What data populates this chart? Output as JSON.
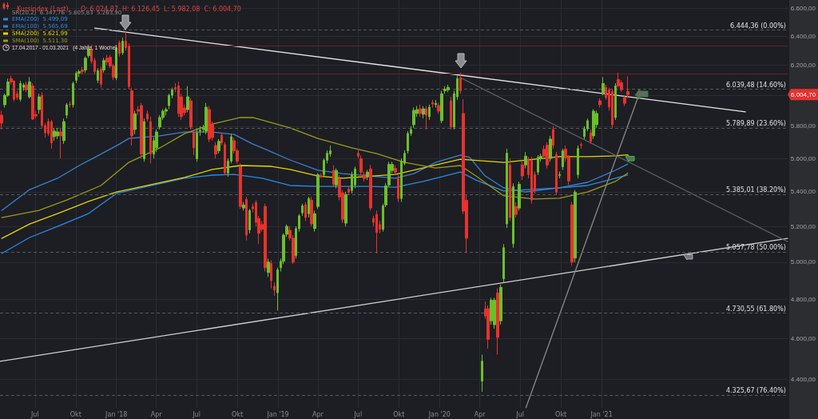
{
  "chart_data": {
    "type": "candlestick",
    "title": "Kursindex (Last)",
    "subtitle": "O: 6.024,87  H: 6.126,45  L: 5.982,08  C: 6.004,70",
    "x": [
      "2017-04-17",
      "2017-04-24",
      "2017-05-01",
      "2017-05-08",
      "2017-05-15",
      "2017-05-22",
      "2017-05-29",
      "2017-06-05",
      "2017-06-12",
      "2017-06-19",
      "2017-06-26",
      "2017-07-03",
      "2017-07-10",
      "2017-07-17",
      "2017-07-24",
      "2017-07-31",
      "2017-08-07",
      "2017-08-14",
      "2017-08-21",
      "2017-08-28",
      "2017-09-04",
      "2017-09-11",
      "2017-09-18",
      "2017-09-25",
      "2017-10-02",
      "2017-10-09",
      "2017-10-16",
      "2017-10-23",
      "2017-10-30",
      "2017-11-06",
      "2017-11-13",
      "2017-11-20",
      "2017-11-27",
      "2017-12-04",
      "2017-12-11",
      "2017-12-18",
      "2017-12-25",
      "2018-01-01",
      "2018-01-08",
      "2018-01-15",
      "2018-01-22",
      "2018-01-29",
      "2018-02-05",
      "2018-02-12",
      "2018-02-19",
      "2018-02-26",
      "2018-03-05",
      "2018-03-12",
      "2018-03-19",
      "2018-03-26",
      "2018-04-02",
      "2018-04-09",
      "2018-04-16",
      "2018-04-23",
      "2018-04-30",
      "2018-05-07",
      "2018-05-14",
      "2018-05-21",
      "2018-05-28",
      "2018-06-04",
      "2018-06-11",
      "2018-06-18",
      "2018-06-25",
      "2018-07-02",
      "2018-07-09",
      "2018-07-16",
      "2018-07-23",
      "2018-07-30",
      "2018-08-06",
      "2018-08-13",
      "2018-08-20",
      "2018-08-27",
      "2018-09-03",
      "2018-09-10",
      "2018-09-17",
      "2018-09-24",
      "2018-10-01",
      "2018-10-08",
      "2018-10-15",
      "2018-10-22",
      "2018-10-29",
      "2018-11-05",
      "2018-11-12",
      "2018-11-19",
      "2018-11-26",
      "2018-12-03",
      "2018-12-10",
      "2018-12-17",
      "2018-12-24",
      "2018-12-31",
      "2019-01-07",
      "2019-01-14",
      "2019-01-21",
      "2019-01-28",
      "2019-02-04",
      "2019-02-11",
      "2019-02-18",
      "2019-02-25",
      "2019-03-04",
      "2019-03-11",
      "2019-03-18",
      "2019-03-25",
      "2019-04-01",
      "2019-04-08",
      "2019-04-15",
      "2019-04-22",
      "2019-04-29",
      "2019-05-06",
      "2019-05-13",
      "2019-05-20",
      "2019-05-27",
      "2019-06-03",
      "2019-06-10",
      "2019-06-17",
      "2019-06-24",
      "2019-07-01",
      "2019-07-08",
      "2019-07-15",
      "2019-07-22",
      "2019-07-29",
      "2019-08-05",
      "2019-08-12",
      "2019-08-19",
      "2019-08-26",
      "2019-09-02",
      "2019-09-09",
      "2019-09-16",
      "2019-09-23",
      "2019-09-30",
      "2019-10-07",
      "2019-10-14",
      "2019-10-21",
      "2019-10-28",
      "2019-11-04",
      "2019-11-11",
      "2019-11-18",
      "2019-11-25",
      "2019-12-02",
      "2019-12-09",
      "2019-12-16",
      "2019-12-23",
      "2019-12-30",
      "2020-01-06",
      "2020-01-13",
      "2020-01-20",
      "2020-01-27",
      "2020-02-03",
      "2020-02-10",
      "2020-02-17",
      "2020-02-24",
      "2020-03-02",
      "2020-04-06",
      "2020-04-13",
      "2020-04-20",
      "2020-04-27",
      "2020-05-04",
      "2020-05-11",
      "2020-05-18",
      "2020-05-25",
      "2020-06-01",
      "2020-06-08",
      "2020-06-15",
      "2020-06-22",
      "2020-06-29",
      "2020-07-06",
      "2020-07-13",
      "2020-07-20",
      "2020-07-27",
      "2020-08-03",
      "2020-08-10",
      "2020-08-17",
      "2020-08-24",
      "2020-08-31",
      "2020-09-07",
      "2020-09-14",
      "2020-09-21",
      "2020-09-28",
      "2020-10-05",
      "2020-10-12",
      "2020-10-19",
      "2020-10-26",
      "2020-11-02",
      "2020-11-09",
      "2020-11-16",
      "2020-11-23",
      "2020-11-30",
      "2020-12-07",
      "2020-12-14",
      "2020-12-21",
      "2020-12-28",
      "2021-01-04",
      "2021-01-11",
      "2021-01-18",
      "2021-01-25",
      "2021-02-01",
      "2021-02-08",
      "2021-02-15",
      "2021-02-22",
      "2021-03-01"
    ],
    "ohlc": [
      [
        5871,
        5900,
        5780,
        5820
      ],
      [
        5938,
        6010,
        5920,
        6000
      ],
      [
        6000,
        6110,
        5990,
        6088
      ],
      [
        6110,
        6130,
        6070,
        6088
      ],
      [
        6093,
        6100,
        5960,
        5974
      ],
      [
        6010,
        6030,
        5970,
        5985
      ],
      [
        5974,
        6095,
        5960,
        6078
      ],
      [
        6052,
        6080,
        6030,
        6068
      ],
      [
        6068,
        6090,
        6020,
        6036
      ],
      [
        5990,
        6120,
        5980,
        6088
      ],
      [
        6062,
        6080,
        5840,
        5846
      ],
      [
        5875,
        5900,
        5850,
        5866
      ],
      [
        5907,
        6010,
        5880,
        5990
      ],
      [
        6000,
        6020,
        5790,
        5805
      ],
      [
        5805,
        5820,
        5730,
        5759
      ],
      [
        5830,
        5850,
        5740,
        5755
      ],
      [
        5830,
        5840,
        5660,
        5696
      ],
      [
        5735,
        5790,
        5710,
        5770
      ],
      [
        5740,
        5790,
        5720,
        5765
      ],
      [
        5765,
        5790,
        5600,
        5740
      ],
      [
        5710,
        5850,
        5690,
        5830
      ],
      [
        5871,
        5950,
        5850,
        5938
      ],
      [
        5943,
        5960,
        5920,
        5938
      ],
      [
        5938,
        6090,
        5920,
        6078
      ],
      [
        6099,
        6160,
        6080,
        6146
      ],
      [
        6146,
        6170,
        6120,
        6157
      ],
      [
        6168,
        6190,
        6140,
        6157
      ],
      [
        6168,
        6260,
        6150,
        6248
      ],
      [
        6265,
        6340,
        6250,
        6310
      ],
      [
        6310,
        6340,
        6210,
        6227
      ],
      [
        6232,
        6250,
        6140,
        6157
      ],
      [
        6099,
        6180,
        6080,
        6163
      ],
      [
        6174,
        6190,
        6050,
        6073
      ],
      [
        6168,
        6250,
        6150,
        6232
      ],
      [
        6248,
        6270,
        6200,
        6221
      ],
      [
        6254,
        6270,
        6180,
        6195
      ],
      [
        6195,
        6210,
        6100,
        6120
      ],
      [
        6115,
        6340,
        6100,
        6320
      ],
      [
        6355,
        6370,
        6260,
        6280
      ],
      [
        6285,
        6390,
        6270,
        6365
      ],
      [
        6365,
        6430,
        6300,
        6320
      ],
      [
        6330,
        6350,
        6040,
        6057
      ],
      [
        6030,
        6050,
        5680,
        5740
      ],
      [
        5780,
        5900,
        5750,
        5880
      ],
      [
        5907,
        5930,
        5870,
        5897
      ],
      [
        5933,
        5950,
        5600,
        5627
      ],
      [
        5598,
        5850,
        5580,
        5830
      ],
      [
        5880,
        5900,
        5830,
        5846
      ],
      [
        5830,
        5860,
        5570,
        5627
      ],
      [
        5627,
        5730,
        5600,
        5710
      ],
      [
        5666,
        5780,
        5640,
        5765
      ],
      [
        5795,
        5870,
        5780,
        5856
      ],
      [
        5856,
        5910,
        5840,
        5897
      ],
      [
        5897,
        5920,
        5870,
        5907
      ],
      [
        5933,
        6010,
        5910,
        6000
      ],
      [
        6000,
        6050,
        5980,
        6036
      ],
      [
        6050,
        6080,
        6020,
        6045
      ],
      [
        6062,
        6090,
        5860,
        5882
      ],
      [
        5990,
        6010,
        5840,
        5861
      ],
      [
        5917,
        5940,
        5870,
        5887
      ],
      [
        5907,
        6060,
        5890,
        5990
      ],
      [
        5964,
        5980,
        5780,
        5795
      ],
      [
        5760,
        5780,
        5620,
        5666
      ],
      [
        5598,
        5780,
        5580,
        5760
      ],
      [
        5770,
        5800,
        5740,
        5775
      ],
      [
        5780,
        5810,
        5760,
        5790
      ],
      [
        5770,
        5950,
        5750,
        5923
      ],
      [
        5907,
        5930,
        5700,
        5720
      ],
      [
        5810,
        5830,
        5710,
        5730
      ],
      [
        5680,
        5700,
        5600,
        5627
      ],
      [
        5647,
        5720,
        5630,
        5706
      ],
      [
        5745,
        5760,
        5680,
        5696
      ],
      [
        5686,
        5700,
        5500,
        5512
      ],
      [
        5512,
        5600,
        5490,
        5584
      ],
      [
        5584,
        5750,
        5570,
        5735
      ],
      [
        5710,
        5730,
        5630,
        5647
      ],
      [
        5647,
        5660,
        5570,
        5584
      ],
      [
        5550,
        5570,
        5300,
        5314
      ],
      [
        5305,
        5340,
        5290,
        5322
      ],
      [
        5355,
        5370,
        5120,
        5150
      ],
      [
        5180,
        5300,
        5160,
        5290
      ],
      [
        5314,
        5330,
        5280,
        5300
      ],
      [
        5337,
        5350,
        5200,
        5223
      ],
      [
        5245,
        5260,
        5100,
        5160
      ],
      [
        5210,
        5230,
        5170,
        5183
      ],
      [
        5314,
        5330,
        4950,
        4970
      ],
      [
        4944,
        5020,
        4920,
        5001
      ],
      [
        4993,
        5010,
        4860,
        4900
      ],
      [
        4870,
        4890,
        4820,
        4850
      ],
      [
        4836,
        4970,
        4743,
        4958
      ],
      [
        4970,
        5020,
        4950,
        5005
      ],
      [
        5005,
        5160,
        4990,
        5150
      ],
      [
        5155,
        5210,
        5140,
        5200
      ],
      [
        5178,
        5200,
        5120,
        5133
      ],
      [
        5133,
        5150,
        4990,
        5001
      ],
      [
        5036,
        5200,
        5020,
        5187
      ],
      [
        5187,
        5270,
        5170,
        5260
      ],
      [
        5277,
        5330,
        5260,
        5318
      ],
      [
        5323,
        5340,
        5230,
        5250
      ],
      [
        5272,
        5370,
        5250,
        5360
      ],
      [
        5350,
        5370,
        5200,
        5214
      ],
      [
        5187,
        5290,
        5170,
        5272
      ],
      [
        5314,
        5510,
        5300,
        5502
      ],
      [
        5495,
        5510,
        5480,
        5490
      ],
      [
        5502,
        5600,
        5490,
        5589
      ],
      [
        5589,
        5650,
        5570,
        5632
      ],
      [
        5627,
        5680,
        5610,
        5647
      ],
      [
        5527,
        5560,
        5430,
        5444
      ],
      [
        5440,
        5540,
        5420,
        5527
      ],
      [
        5478,
        5500,
        5350,
        5370
      ],
      [
        5393,
        5410,
        5220,
        5240
      ],
      [
        5218,
        5400,
        5200,
        5384
      ],
      [
        5416,
        5430,
        5380,
        5398
      ],
      [
        5407,
        5520,
        5390,
        5502
      ],
      [
        5440,
        5550,
        5420,
        5536
      ],
      [
        5632,
        5660,
        5600,
        5614
      ],
      [
        5598,
        5620,
        5500,
        5517
      ],
      [
        5502,
        5520,
        5460,
        5478
      ],
      [
        5488,
        5530,
        5470,
        5517
      ],
      [
        5536,
        5560,
        5290,
        5305
      ],
      [
        5245,
        5260,
        5200,
        5223
      ],
      [
        5268,
        5290,
        5049,
        5165
      ],
      [
        5210,
        5230,
        5160,
        5183
      ],
      [
        5183,
        5330,
        5170,
        5318
      ],
      [
        5323,
        5450,
        5310,
        5435
      ],
      [
        5440,
        5580,
        5430,
        5564
      ],
      [
        5527,
        5580,
        5510,
        5564
      ],
      [
        5540,
        5560,
        5500,
        5517
      ],
      [
        5478,
        5500,
        5340,
        5360
      ],
      [
        5360,
        5600,
        5340,
        5584
      ],
      [
        5570,
        5650,
        5560,
        5632
      ],
      [
        5647,
        5770,
        5630,
        5755
      ],
      [
        5755,
        5800,
        5740,
        5780
      ],
      [
        5810,
        5920,
        5790,
        5902
      ],
      [
        5882,
        5930,
        5860,
        5907
      ],
      [
        5912,
        5940,
        5860,
        5882
      ],
      [
        5877,
        5930,
        5850,
        5912
      ],
      [
        5912,
        5930,
        5780,
        5871
      ],
      [
        5861,
        5940,
        5840,
        5923
      ],
      [
        5953,
        5970,
        5920,
        5943
      ],
      [
        5938,
        5970,
        5920,
        5948
      ],
      [
        5933,
        5950,
        5880,
        5897
      ],
      [
        5836,
        6030,
        5820,
        6010
      ],
      [
        6030,
        6060,
        6010,
        6041
      ],
      [
        6036,
        6070,
        6020,
        6052
      ],
      [
        5964,
        5990,
        5780,
        5795
      ],
      [
        5795,
        6030,
        5780,
        6010
      ],
      [
        5990,
        6130,
        5970,
        6110
      ],
      [
        6115,
        6150,
        6010,
        6030
      ],
      [
        5882,
        5975,
        5270,
        5287
      ],
      [
        5350,
        5380,
        5050,
        5133
      ],
      [
        4391,
        4520,
        4340,
        4488
      ],
      [
        4752,
        4790,
        4700,
        4715
      ],
      [
        4752,
        4770,
        4550,
        4596
      ],
      [
        4690,
        4810,
        4670,
        4797
      ],
      [
        4670,
        4810,
        4650,
        4797
      ],
      [
        4835,
        4860,
        4520,
        4606
      ],
      [
        4690,
        4880,
        4670,
        4865
      ],
      [
        4910,
        5100,
        4890,
        5080
      ],
      [
        5214,
        5660,
        5190,
        5632
      ],
      [
        5560,
        5600,
        5230,
        5250
      ],
      [
        5102,
        5450,
        5080,
        5430
      ],
      [
        5314,
        5340,
        5250,
        5268
      ],
      [
        5305,
        5460,
        5290,
        5444
      ],
      [
        5560,
        5580,
        5470,
        5494
      ],
      [
        5560,
        5640,
        5540,
        5614
      ],
      [
        5589,
        5610,
        5480,
        5502
      ],
      [
        5589,
        5610,
        5330,
        5351
      ],
      [
        5502,
        5520,
        5390,
        5407
      ],
      [
        5517,
        5620,
        5500,
        5607
      ],
      [
        5600,
        5630,
        5580,
        5614
      ],
      [
        5657,
        5680,
        5600,
        5614
      ],
      [
        5681,
        5700,
        5540,
        5560
      ],
      [
        5600,
        5740,
        5580,
        5720
      ],
      [
        5780,
        5800,
        5660,
        5681
      ],
      [
        5623,
        5640,
        5380,
        5398
      ],
      [
        5497,
        5520,
        5480,
        5502
      ],
      [
        5550,
        5660,
        5530,
        5647
      ],
      [
        5657,
        5680,
        5580,
        5603
      ],
      [
        5603,
        5620,
        5440,
        5464
      ],
      [
        5323,
        5340,
        4980,
        5001
      ],
      [
        5023,
        5410,
        5000,
        5398
      ],
      [
        5502,
        5680,
        5480,
        5661
      ],
      [
        5686,
        5700,
        5660,
        5681
      ],
      [
        5735,
        5800,
        5720,
        5784
      ],
      [
        5784,
        5850,
        5770,
        5836
      ],
      [
        5760,
        5780,
        5690,
        5706
      ],
      [
        5740,
        5910,
        5720,
        5897
      ],
      [
        5810,
        5900,
        5790,
        5882
      ],
      [
        5964,
        5980,
        5920,
        5938
      ],
      [
        6015,
        6120,
        6000,
        6078
      ],
      [
        6052,
        6070,
        5970,
        5985
      ],
      [
        6036,
        6050,
        5900,
        5923
      ],
      [
        6026,
        6040,
        5790,
        5810
      ],
      [
        5856,
        6080,
        5840,
        6062
      ],
      [
        6104,
        6150,
        6050,
        6062
      ],
      [
        6083,
        6100,
        6020,
        6036
      ],
      [
        5985,
        6000,
        5930,
        5948
      ],
      [
        6024.87,
        6126.45,
        5982.08,
        6004.7
      ]
    ],
    "series": [
      {
        "name": "EMA(200)  5.499,09",
        "type": "line",
        "color": "#2d8ae6",
        "x": [
          "2017-04-17",
          "2017-06-19",
          "2017-08-21",
          "2017-10-30",
          "2018-01-01",
          "2018-03-12",
          "2018-06-04",
          "2018-08-06",
          "2018-09-24",
          "2018-11-26",
          "2019-01-28",
          "2019-04-01",
          "2019-07-29",
          "2019-09-23",
          "2019-11-25",
          "2020-02-17",
          "2020-03-23",
          "2020-05-25",
          "2020-09-28",
          "2020-11-30",
          "2021-02-01",
          "2021-03-01"
        ],
        "values": [
          5048,
          5137,
          5200,
          5273,
          5390,
          5432,
          5480,
          5499,
          5503,
          5480,
          5437,
          5432,
          5432,
          5427,
          5461,
          5518,
          5470,
          5404,
          5423,
          5437,
          5480,
          5499.09
        ]
      },
      {
        "name": "EMA(100)  5.565,69",
        "type": "line",
        "color": "#3a82d0",
        "x": [
          "2017-04-17",
          "2017-06-19",
          "2017-08-21",
          "2017-10-09",
          "2017-11-13",
          "2018-01-08",
          "2018-01-29",
          "2018-04-09",
          "2018-06-04",
          "2018-08-06",
          "2018-09-24",
          "2018-11-05",
          "2018-11-26",
          "2019-01-28",
          "2019-04-01",
          "2019-05-27",
          "2019-09-23",
          "2019-11-04",
          "2019-12-23",
          "2020-02-17",
          "2020-03-09",
          "2020-04-13",
          "2020-05-25",
          "2020-07-13",
          "2020-09-28",
          "2020-11-30",
          "2021-02-01",
          "2021-03-01"
        ],
        "values": [
          5291,
          5413,
          5480,
          5557,
          5606,
          5689,
          5724,
          5740,
          5764,
          5764,
          5749,
          5689,
          5665,
          5591,
          5528,
          5508,
          5480,
          5508,
          5576,
          5621,
          5606,
          5494,
          5423,
          5399,
          5423,
          5456,
          5528,
          5565.69
        ]
      },
      {
        "name": "SMA(200)  5.621,99",
        "type": "line",
        "color": "#e6d400",
        "x": [
          "2017-04-17",
          "2017-06-19",
          "2017-08-21",
          "2017-10-30",
          "2018-01-01",
          "2018-03-12",
          "2018-06-04",
          "2018-08-06",
          "2018-10-08",
          "2018-12-17",
          "2019-01-28",
          "2019-04-01",
          "2019-05-27",
          "2019-09-23",
          "2019-12-09",
          "2020-02-17",
          "2020-05-25",
          "2020-09-28",
          "2020-11-30",
          "2021-02-01",
          "2021-03-01"
        ],
        "values": [
          5132,
          5213,
          5273,
          5343,
          5399,
          5437,
          5485,
          5533,
          5557,
          5552,
          5533,
          5494,
          5480,
          5503,
          5552,
          5595,
          5576,
          5611,
          5611,
          5616,
          5621.99
        ]
      },
      {
        "name": "SMA(100)  5.511,30",
        "type": "line",
        "color": "#9c9a1a",
        "x": [
          "2017-04-17",
          "2017-07-10",
          "2017-09-11",
          "2017-11-27",
          "2018-01-29",
          "2018-04-09",
          "2018-06-04",
          "2018-08-06",
          "2018-10-08",
          "2018-11-05",
          "2018-11-26",
          "2019-01-28",
          "2019-04-01",
          "2019-06-17",
          "2019-08-12",
          "2019-10-14",
          "2019-12-23",
          "2020-02-17",
          "2020-03-23",
          "2020-05-25",
          "2020-08-03",
          "2020-09-28",
          "2020-11-30",
          "2021-02-01",
          "2021-03-01"
        ],
        "values": [
          5250,
          5291,
          5352,
          5437,
          5576,
          5665,
          5754,
          5815,
          5856,
          5856,
          5840,
          5790,
          5724,
          5665,
          5630,
          5576,
          5542,
          5557,
          5494,
          5376,
          5357,
          5362,
          5399,
          5461,
          5511.3
        ]
      },
      {
        "type": "line",
        "color": "#e6e6e6",
        "x": [
          "2017-11-13",
          "2021-11-22"
        ],
        "values": [
          6457,
          5892
        ]
      },
      {
        "type": "line",
        "color": "#d0d0d0",
        "x": [
          "2017-04-13",
          "2022-02-25"
        ],
        "values": [
          4487,
          5132
        ]
      },
      {
        "type": "line",
        "color": "#5a5c60",
        "x": [
          "2020-02-17",
          "2022-02-25"
        ],
        "values": [
          6117,
          5114
        ]
      },
      {
        "type": "line",
        "color": "#8a8a8a",
        "x": [
          "2020-07-14",
          "2021-03-24"
        ],
        "values": [
          4265,
          5985
        ]
      }
    ],
    "xlim": [
      "2017-04-13",
      "2022-02-25"
    ],
    "xticks": [
      {
        "value": "2017-07-01",
        "label": "Jul"
      },
      {
        "value": "2017-10-01",
        "label": "Okt"
      },
      {
        "value": "2018-01-01",
        "label": "Jan '18"
      },
      {
        "value": "2018-04-01",
        "label": "Apr"
      },
      {
        "value": "2018-07-01",
        "label": "Jul"
      },
      {
        "value": "2018-10-01",
        "label": "Okt"
      },
      {
        "value": "2019-01-01",
        "label": "Jan '19"
      },
      {
        "value": "2019-04-01",
        "label": "Apr"
      },
      {
        "value": "2019-07-01",
        "label": "Jul"
      },
      {
        "value": "2019-10-01",
        "label": "Okt"
      },
      {
        "value": "2020-01-01",
        "label": "Jan '20"
      },
      {
        "value": "2020-04-01",
        "label": "Apr"
      },
      {
        "value": "2020-07-01",
        "label": "Jul"
      },
      {
        "value": "2020-10-01",
        "label": "Okt"
      },
      {
        "value": "2021-01-01",
        "label": "Jan '21"
      }
    ],
    "ylim": [
      4265,
      6658
    ],
    "yticks": [
      {
        "value": 4400,
        "label": "4.400,00"
      },
      {
        "value": 4600,
        "label": "4.600,00"
      },
      {
        "value": 4800,
        "label": "4.800,00"
      },
      {
        "value": 5000,
        "label": "5.000,00"
      },
      {
        "value": 5200,
        "label": "5.200,00"
      },
      {
        "value": 5400,
        "label": "5.400,00"
      },
      {
        "value": 5600,
        "label": "5.600,00"
      },
      {
        "value": 5800,
        "label": "5.800,00"
      },
      {
        "value": 6000,
        "label": null
      },
      {
        "value": 6200,
        "label": "6.200,00"
      },
      {
        "value": 6400,
        "label": "6.400,00"
      },
      {
        "value": 6600,
        "label": "6.600,00"
      }
    ],
    "log": true,
    "grid": true,
    "legend": "top left",
    "marker": "none",
    "ref_lines": [
      {
        "axis": "y",
        "value": 6444.36,
        "label": "6.444,36 (0.00%)",
        "color": "#55585e",
        "line_style": "dashed"
      },
      {
        "axis": "y",
        "value": 6039.48,
        "label": "6.039,48 (14.60%)",
        "color": "#55585e",
        "line_style": "dashed"
      },
      {
        "axis": "y",
        "value": 5789.89,
        "label": "5.789,89 (23.60%)",
        "color": "#55585e",
        "line_style": "dashed"
      },
      {
        "axis": "y",
        "value": 5385.01,
        "label": "5.385,01 (38.20%)",
        "color": "#55585e",
        "line_style": "dashed"
      },
      {
        "axis": "y",
        "value": 5057.78,
        "label": "5.057,78 (50.00%)",
        "color": "#55585e",
        "line_style": "dashed"
      },
      {
        "axis": "y",
        "value": 4730.55,
        "label": "4.730,55 (61.80%)",
        "color": "#55585e",
        "line_style": "dashed"
      },
      {
        "axis": "y",
        "value": 4325.67,
        "label": "4.325,67 (76.40%)",
        "color": "#55585e",
        "line_style": "dashed"
      },
      {
        "axis": "y",
        "value": 6335,
        "color": "#6b2226",
        "line_style": "solid"
      },
      {
        "axis": "y",
        "value": 6144,
        "color": "#6b2226",
        "line_style": "solid"
      }
    ],
    "annotations": [
      "17.04.2017 - 01.03.2021   (4 Jahre, 1 Woche)",
      "SR(20,2)  6.347,76  5.805,83  5.263,90",
      "6.004,70"
    ]
  }
}
